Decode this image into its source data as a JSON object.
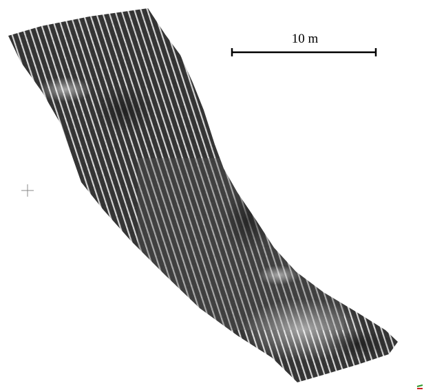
{
  "scale_bar": {
    "label": "10 m"
  }
}
